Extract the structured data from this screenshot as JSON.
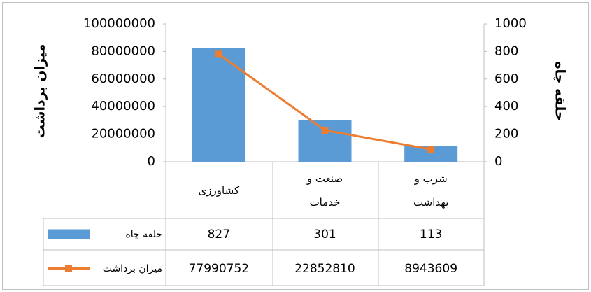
{
  "chart_data": {
    "type": "bar",
    "categories": [
      "کشاورزی",
      "صنعت و خدمات",
      "شرب و بهداشت"
    ],
    "series": [
      {
        "name": "حلقه چاه",
        "type": "bar",
        "axis": "y2",
        "color": "#5b9bd5",
        "values": [
          827,
          301,
          113
        ]
      },
      {
        "name": "میزان برداشت",
        "type": "line",
        "color": "#ed7d31",
        "values": [
          77990752,
          22852810,
          8943609
        ]
      }
    ],
    "y_label": "میزان برداشت",
    "y2_label": "حلقه چاه",
    "ylim": [
      0,
      100000000
    ],
    "yticks": [
      0,
      20000000,
      40000000,
      60000000,
      80000000,
      100000000
    ],
    "y2lim": [
      0,
      1000
    ],
    "y2ticks": [
      0,
      200,
      400,
      600,
      800,
      1000
    ],
    "grid": false,
    "data_table": true
  }
}
